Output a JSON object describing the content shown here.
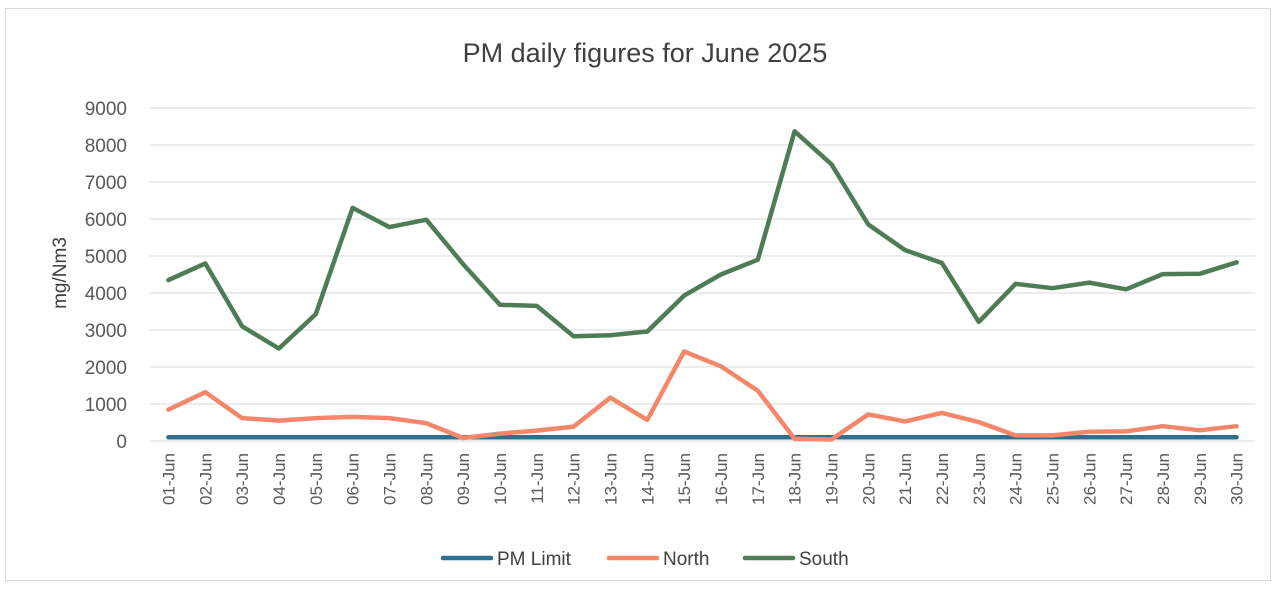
{
  "chart_data": {
    "type": "line",
    "title": "PM daily figures for June 2025",
    "ylabel": "mg/Nm3",
    "xlabel": "",
    "ylim": [
      0,
      9000
    ],
    "yticks": [
      0,
      1000,
      2000,
      3000,
      4000,
      5000,
      6000,
      7000,
      8000,
      9000
    ],
    "grid": true,
    "legend_position": "bottom",
    "categories": [
      "01-Jun",
      "02-Jun",
      "03-Jun",
      "04-Jun",
      "05-Jun",
      "06-Jun",
      "07-Jun",
      "08-Jun",
      "09-Jun",
      "10-Jun",
      "11-Jun",
      "12-Jun",
      "13-Jun",
      "14-Jun",
      "15-Jun",
      "16-Jun",
      "17-Jun",
      "18-Jun",
      "19-Jun",
      "20-Jun",
      "21-Jun",
      "22-Jun",
      "23-Jun",
      "24-Jun",
      "25-Jun",
      "26-Jun",
      "27-Jun",
      "28-Jun",
      "29-Jun",
      "30-Jun"
    ],
    "series": [
      {
        "name": "PM Limit",
        "color": "#2e6f8e",
        "values": [
          100,
          100,
          100,
          100,
          100,
          100,
          100,
          100,
          100,
          100,
          100,
          100,
          100,
          100,
          100,
          100,
          100,
          100,
          100,
          100,
          100,
          100,
          100,
          100,
          100,
          100,
          100,
          100,
          100,
          100
        ]
      },
      {
        "name": "North",
        "color": "#f4876a",
        "values": [
          850,
          1320,
          620,
          550,
          620,
          650,
          620,
          480,
          80,
          200,
          280,
          390,
          1170,
          570,
          2420,
          2020,
          1360,
          60,
          40,
          720,
          530,
          760,
          510,
          150,
          150,
          250,
          260,
          400,
          290,
          400
        ]
      },
      {
        "name": "South",
        "color": "#4e7d55",
        "values": [
          4350,
          4800,
          3100,
          2500,
          3430,
          6300,
          5780,
          5980,
          4780,
          3680,
          3650,
          2830,
          2860,
          2960,
          3930,
          4500,
          4900,
          8370,
          7480,
          5850,
          5160,
          4810,
          3220,
          4250,
          4130,
          4280,
          4100,
          4510,
          4520,
          4830
        ]
      }
    ]
  }
}
